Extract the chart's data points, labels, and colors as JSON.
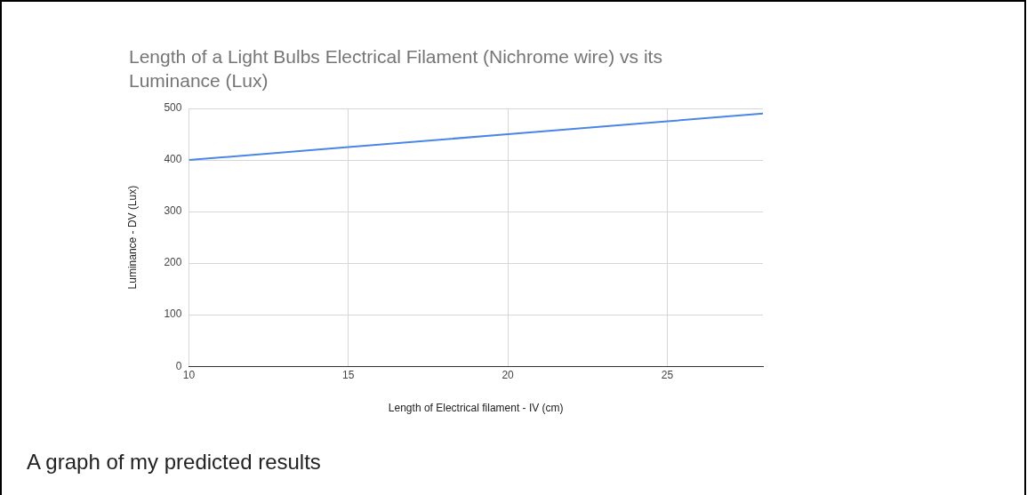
{
  "chart_data": {
    "type": "line",
    "title": "Length of a Light Bulbs Electrical Filament (Nichrome wire) vs its Luminance (Lux)",
    "xlabel": "Length of Electrical filament - IV (cm)",
    "ylabel": "Luminance - DV (Lux)",
    "annotations": [
      "A graph of my predicted results"
    ],
    "x": [
      10,
      15,
      20,
      25,
      28
    ],
    "series": [
      {
        "color": "#4a86e8",
        "values": [
          400,
          425,
          450,
          475,
          490
        ]
      }
    ],
    "xlim": [
      10,
      28
    ],
    "xticks": [
      10,
      15,
      20,
      25
    ],
    "ylim": [
      0,
      500
    ],
    "yticks": [
      0,
      100,
      200,
      300,
      400,
      500
    ],
    "grid": true,
    "legend": false,
    "marker": "none",
    "line_style": "solid"
  }
}
